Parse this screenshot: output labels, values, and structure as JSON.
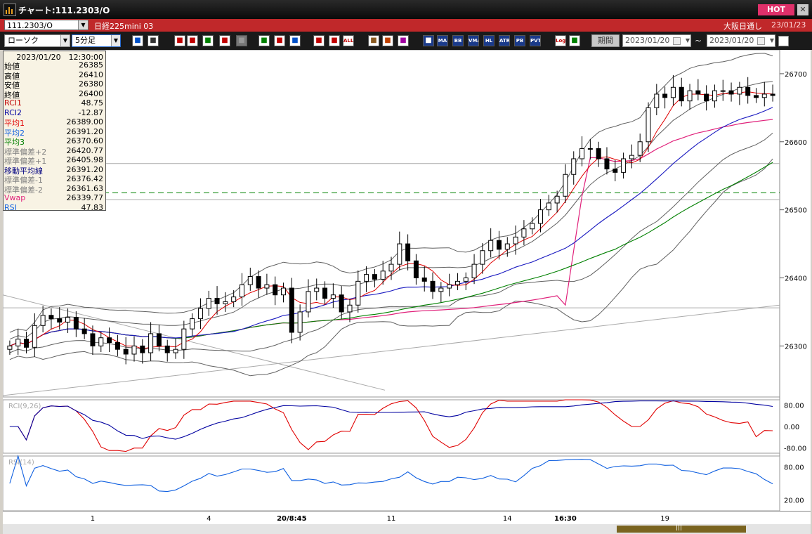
{
  "window": {
    "title": "チャート:111.2303/O",
    "hot_label": "HOT",
    "close_label": "✕"
  },
  "info_bar": {
    "symbol": "111.2303/O",
    "name": "日経225mini 03",
    "session": "大阪日通し",
    "date": "23/01/23"
  },
  "toolbar": {
    "chart_type": "ローソク",
    "interval": "5分足",
    "period_button": "期間",
    "date_from": "2023/01/20",
    "date_to": "2023/01/20",
    "range_sep": "~",
    "icons": [
      {
        "name": "zoom-icon",
        "label": "",
        "bg": "#ffffff",
        "fg": "#0050c8"
      },
      {
        "name": "split-icon",
        "label": "",
        "bg": "#ffffff",
        "fg": "#333333"
      },
      {
        "name": "tool-arrow-down-icon",
        "label": "",
        "bg": "#ffffff",
        "fg": "#c00000"
      },
      {
        "name": "tool-search-icon",
        "label": "",
        "bg": "#ffffff",
        "fg": "#c00000"
      },
      {
        "name": "tool-chart-icon",
        "label": "",
        "bg": "#ffffff",
        "fg": "#008000"
      },
      {
        "name": "tool-plusminus-icon",
        "label": "",
        "bg": "#ffffff",
        "fg": "#c00000"
      },
      {
        "name": "tool-disabled-icon",
        "label": "",
        "bg": "#777777",
        "fg": "#999999"
      },
      {
        "name": "draw-line-icon",
        "label": "",
        "bg": "#ffffff",
        "fg": "#008000"
      },
      {
        "name": "cursor-icon",
        "label": "",
        "bg": "#ffffff",
        "fg": "#c00000"
      },
      {
        "name": "undo-icon",
        "label": "",
        "bg": "#ffffff",
        "fg": "#0050c8"
      },
      {
        "name": "candle-a-icon",
        "label": "",
        "bg": "#ffffff",
        "fg": "#c00000"
      },
      {
        "name": "candle-b-icon",
        "label": "",
        "bg": "#ffffff",
        "fg": "#c00000"
      },
      {
        "name": "all-button",
        "label": "ALL",
        "bg": "#ffffff",
        "fg": "#c00000"
      },
      {
        "name": "settings-icon",
        "label": "",
        "bg": "#ffffff",
        "fg": "#8a5a20"
      },
      {
        "name": "wrench-icon",
        "label": "",
        "bg": "#ffffff",
        "fg": "#c04000"
      },
      {
        "name": "palette-icon",
        "label": "",
        "bg": "#ffffff",
        "fg": "#a000a0"
      },
      {
        "name": "grid-icon",
        "label": "",
        "bg": "#1a3a8a",
        "fg": "#ffffff"
      },
      {
        "name": "ma-button",
        "label": "MA",
        "bg": "#1a3a8a",
        "fg": "#ffffff"
      },
      {
        "name": "bb-button",
        "label": "BB",
        "bg": "#1a3a8a",
        "fg": "#ffffff"
      },
      {
        "name": "vma-button",
        "label": "VMA",
        "bg": "#1a3a8a",
        "fg": "#ffffff"
      },
      {
        "name": "hl-button",
        "label": "HL",
        "bg": "#1a3a8a",
        "fg": "#ffffff"
      },
      {
        "name": "atr-button",
        "label": "ATR",
        "bg": "#1a3a8a",
        "fg": "#ffffff"
      },
      {
        "name": "pb-button",
        "label": "PB",
        "bg": "#1a3a8a",
        "fg": "#ffffff"
      },
      {
        "name": "pvt-button",
        "label": "PVT",
        "bg": "#1a3a8a",
        "fg": "#ffffff"
      },
      {
        "name": "log-button",
        "label": "Log",
        "bg": "#ffffff",
        "fg": "#c00000"
      },
      {
        "name": "export-icon",
        "label": "",
        "bg": "#ffffff",
        "fg": "#008000"
      }
    ]
  },
  "data_window": {
    "datetime": "2023/01/20　12:30:00",
    "rows": [
      {
        "label": "始値",
        "value": "26385",
        "color": "#000000"
      },
      {
        "label": "高値",
        "value": "26410",
        "color": "#000000"
      },
      {
        "label": "安値",
        "value": "26380",
        "color": "#000000"
      },
      {
        "label": "終値",
        "value": "26400",
        "color": "#000000"
      },
      {
        "label": "RCI1",
        "value": "48.75",
        "color": "#c00000"
      },
      {
        "label": "RCI2",
        "value": "-12.87",
        "color": "#0000a0"
      },
      {
        "label": "平均1",
        "value": "26389.00",
        "color": "#e00000"
      },
      {
        "label": "平均2",
        "value": "26391.20",
        "color": "#1060e0"
      },
      {
        "label": "平均3",
        "value": "26370.60",
        "color": "#008000"
      },
      {
        "label": "標準偏差+2",
        "value": "26420.77",
        "color": "#808080"
      },
      {
        "label": "標準偏差+1",
        "value": "26405.98",
        "color": "#808080"
      },
      {
        "label": "移動平均線",
        "value": "26391.20",
        "color": "#000080"
      },
      {
        "label": "標準偏差-1",
        "value": "26376.42",
        "color": "#808080"
      },
      {
        "label": "標準偏差-2",
        "value": "26361.63",
        "color": "#808080"
      },
      {
        "label": "Vwap",
        "value": "26339.77",
        "color": "#e0207a"
      },
      {
        "label": "RSI",
        "value": "47.83",
        "color": "#1060e0"
      }
    ]
  },
  "chart_data": {
    "type": "candlestick",
    "price_axis": {
      "ticks": [
        26700,
        26600,
        26500,
        26400,
        26300
      ],
      "range": [
        26225,
        26735
      ]
    },
    "rci_panel": {
      "label": "RCI(9,26)",
      "ticks": [
        "80.00",
        "0.00",
        "-80.00"
      ],
      "range": [
        -100,
        100
      ]
    },
    "rsi_panel": {
      "label": "RSI(14)",
      "ticks": [
        "80.00",
        "20.00"
      ],
      "range": [
        0,
        100
      ]
    },
    "time_labels": [
      "1",
      "4",
      "20/8:45",
      "11",
      "14",
      "16:30",
      "19"
    ],
    "time_label_index": [
      10,
      24,
      34,
      46,
      60,
      67,
      79
    ],
    "reference_level": 26525,
    "colors": {
      "up": "#000000",
      "down": "#000000",
      "ma1": "#e00000",
      "ma2": "#1818c0",
      "ma3": "#008000",
      "vwap": "#e0207a",
      "bands": "#606060",
      "rci1": "#e00000",
      "rci2": "#0000a0",
      "rsi": "#1060e0",
      "ref": "#008000"
    },
    "close": [
      26300,
      26310,
      26298,
      26330,
      26345,
      26340,
      26335,
      26342,
      26325,
      26318,
      26300,
      26312,
      26305,
      26295,
      26288,
      26300,
      26290,
      26318,
      26300,
      26290,
      26295,
      26325,
      26340,
      26355,
      26370,
      26362,
      26365,
      26372,
      26390,
      26402,
      26385,
      26390,
      26375,
      26385,
      26320,
      26350,
      26380,
      26385,
      26370,
      26375,
      26350,
      26360,
      26395,
      26405,
      26398,
      26410,
      26420,
      26450,
      26425,
      26400,
      26395,
      26380,
      26385,
      26390,
      26395,
      26400,
      26420,
      26440,
      26455,
      26442,
      26450,
      26460,
      26472,
      26480,
      26500,
      26510,
      26520,
      26552,
      26575,
      26590,
      26590,
      26575,
      26560,
      26555,
      26575,
      26580,
      26600,
      26650,
      26670,
      26665,
      26680,
      26660,
      26675,
      26670,
      26660,
      26675,
      26675,
      26670,
      26680,
      26668,
      26665,
      26670,
      26668
    ]
  }
}
